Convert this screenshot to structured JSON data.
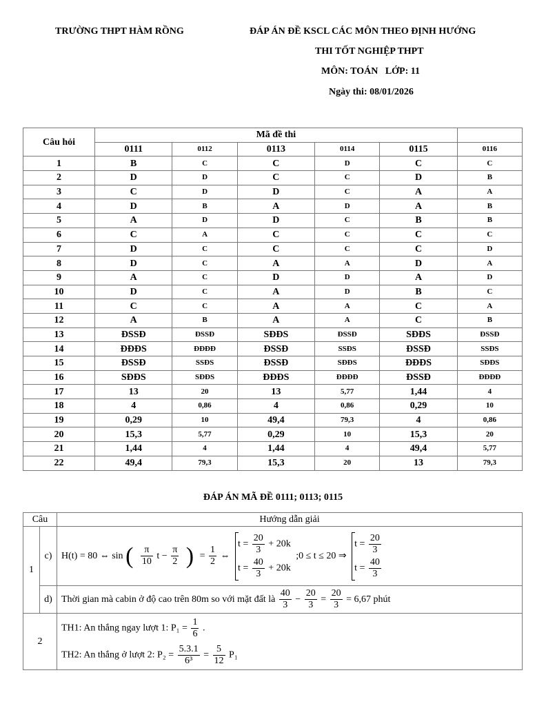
{
  "header": {
    "school": "TRƯỜNG THPT HÀM RỒNG",
    "title_line1": "ĐÁP ÁN ĐỀ KSCL CÁC MÔN THEO ĐỊNH HƯỚNG",
    "title_line2": "THI TỐT NGHIỆP THPT",
    "subject": "MÔN: TOÁN   LỚP: 11",
    "date": "Ngày thi: 08/01/2026"
  },
  "answer_table": {
    "col_question": "Câu hỏi",
    "col_group": "Mã đề thi",
    "codes": [
      "0111",
      "0112",
      "0113",
      "0114",
      "0115",
      "0116"
    ],
    "rows": [
      [
        "1",
        "B",
        "C",
        "C",
        "D",
        "C",
        "C"
      ],
      [
        "2",
        "D",
        "D",
        "C",
        "C",
        "D",
        "B"
      ],
      [
        "3",
        "C",
        "D",
        "D",
        "C",
        "A",
        "A"
      ],
      [
        "4",
        "D",
        "B",
        "A",
        "D",
        "A",
        "B"
      ],
      [
        "5",
        "A",
        "D",
        "D",
        "C",
        "B",
        "B"
      ],
      [
        "6",
        "C",
        "A",
        "C",
        "C",
        "C",
        "C"
      ],
      [
        "7",
        "D",
        "C",
        "C",
        "C",
        "C",
        "D"
      ],
      [
        "8",
        "D",
        "C",
        "A",
        "A",
        "D",
        "A"
      ],
      [
        "9",
        "A",
        "C",
        "D",
        "D",
        "A",
        "D"
      ],
      [
        "10",
        "D",
        "C",
        "A",
        "D",
        "B",
        "C"
      ],
      [
        "11",
        "C",
        "C",
        "A",
        "A",
        "C",
        "A"
      ],
      [
        "12",
        "A",
        "B",
        "A",
        "A",
        "C",
        "B"
      ],
      [
        "13",
        "ĐSSĐ",
        "ĐSSĐ",
        "SĐĐS",
        "ĐSSĐ",
        "SĐĐS",
        "ĐSSĐ"
      ],
      [
        "14",
        "ĐĐĐS",
        "ĐĐĐĐ",
        "ĐSSĐ",
        "SSĐS",
        "ĐSSĐ",
        "SSĐS"
      ],
      [
        "15",
        "ĐSSĐ",
        "SSĐS",
        "ĐSSĐ",
        "SĐĐS",
        "ĐĐĐS",
        "SĐĐS"
      ],
      [
        "16",
        "SĐĐS",
        "SĐĐS",
        "ĐĐĐS",
        "ĐĐĐĐ",
        "ĐSSĐ",
        "ĐĐĐĐ"
      ],
      [
        "17",
        "13",
        "20",
        "13",
        "5,77",
        "1,44",
        "4"
      ],
      [
        "18",
        "4",
        "0,86",
        "4",
        "0,86",
        "0,29",
        "10"
      ],
      [
        "19",
        "0,29",
        "10",
        "49,4",
        "79,3",
        "4",
        "0,86"
      ],
      [
        "20",
        "15,3",
        "5,77",
        "0,29",
        "10",
        "15,3",
        "20"
      ],
      [
        "21",
        "1,44",
        "4",
        "1,44",
        "4",
        "49,4",
        "5,77"
      ],
      [
        "22",
        "49,4",
        "79,3",
        "15,3",
        "20",
        "13",
        "79,3"
      ]
    ]
  },
  "solution": {
    "title": "ĐÁP ÁN MÃ ĐỀ 0111; 0113; 0115",
    "col_question": "Câu",
    "col_guide": "Hướng dẫn giải",
    "q1": "1",
    "q1c": "c)",
    "q1d": "d)",
    "q2": "2",
    "c_line": [
      {
        "t": "H(t) = 80 ⇔ sin"
      },
      {
        "t": "("
      },
      {
        "f": [
          "π",
          "10"
        ]
      },
      {
        "t": "t −"
      },
      {
        "f": [
          "π",
          "2"
        ]
      },
      {
        "t": ")"
      },
      {
        "t": "="
      },
      {
        "f": [
          "1",
          "2"
        ]
      },
      {
        "t": "⇔"
      },
      {
        "s": [
          [
            {
              "t": "t ="
            },
            {
              "f": [
                "20",
                "3"
              ]
            },
            {
              "t": "+ 20k"
            }
          ],
          [
            {
              "t": "t ="
            },
            {
              "f": [
                "40",
                "3"
              ]
            },
            {
              "t": "+ 20k"
            }
          ]
        ]
      },
      {
        "t": ";0 ≤ t ≤ 20 ⇒"
      },
      {
        "s": [
          [
            {
              "t": "t ="
            },
            {
              "f": [
                "20",
                "3"
              ]
            }
          ],
          [
            {
              "t": "t ="
            },
            {
              "f": [
                "40",
                "3"
              ]
            }
          ]
        ]
      }
    ],
    "d_line": [
      {
        "t": "Thời gian mà cabin ở độ cao trên 80m so với mặt đất là"
      },
      {
        "f": [
          "40",
          "3"
        ]
      },
      {
        "t": "−"
      },
      {
        "f": [
          "20",
          "3"
        ]
      },
      {
        "t": "="
      },
      {
        "f": [
          "20",
          "3"
        ]
      },
      {
        "t": "= 6,67  phút"
      }
    ],
    "q2_line1": [
      {
        "t": "TH1: An thắng ngay lượt 1:  P₁ ="
      },
      {
        "f": [
          "1",
          "6"
        ]
      },
      {
        "t": "."
      }
    ],
    "q2_line2": [
      {
        "t": "TH2: An thắng ở lượt 2:  P₂ ="
      },
      {
        "f": [
          "5.3.1",
          "6³"
        ]
      },
      {
        "t": "="
      },
      {
        "f": [
          "5",
          "12"
        ]
      },
      {
        "t": "P₁"
      }
    ]
  }
}
